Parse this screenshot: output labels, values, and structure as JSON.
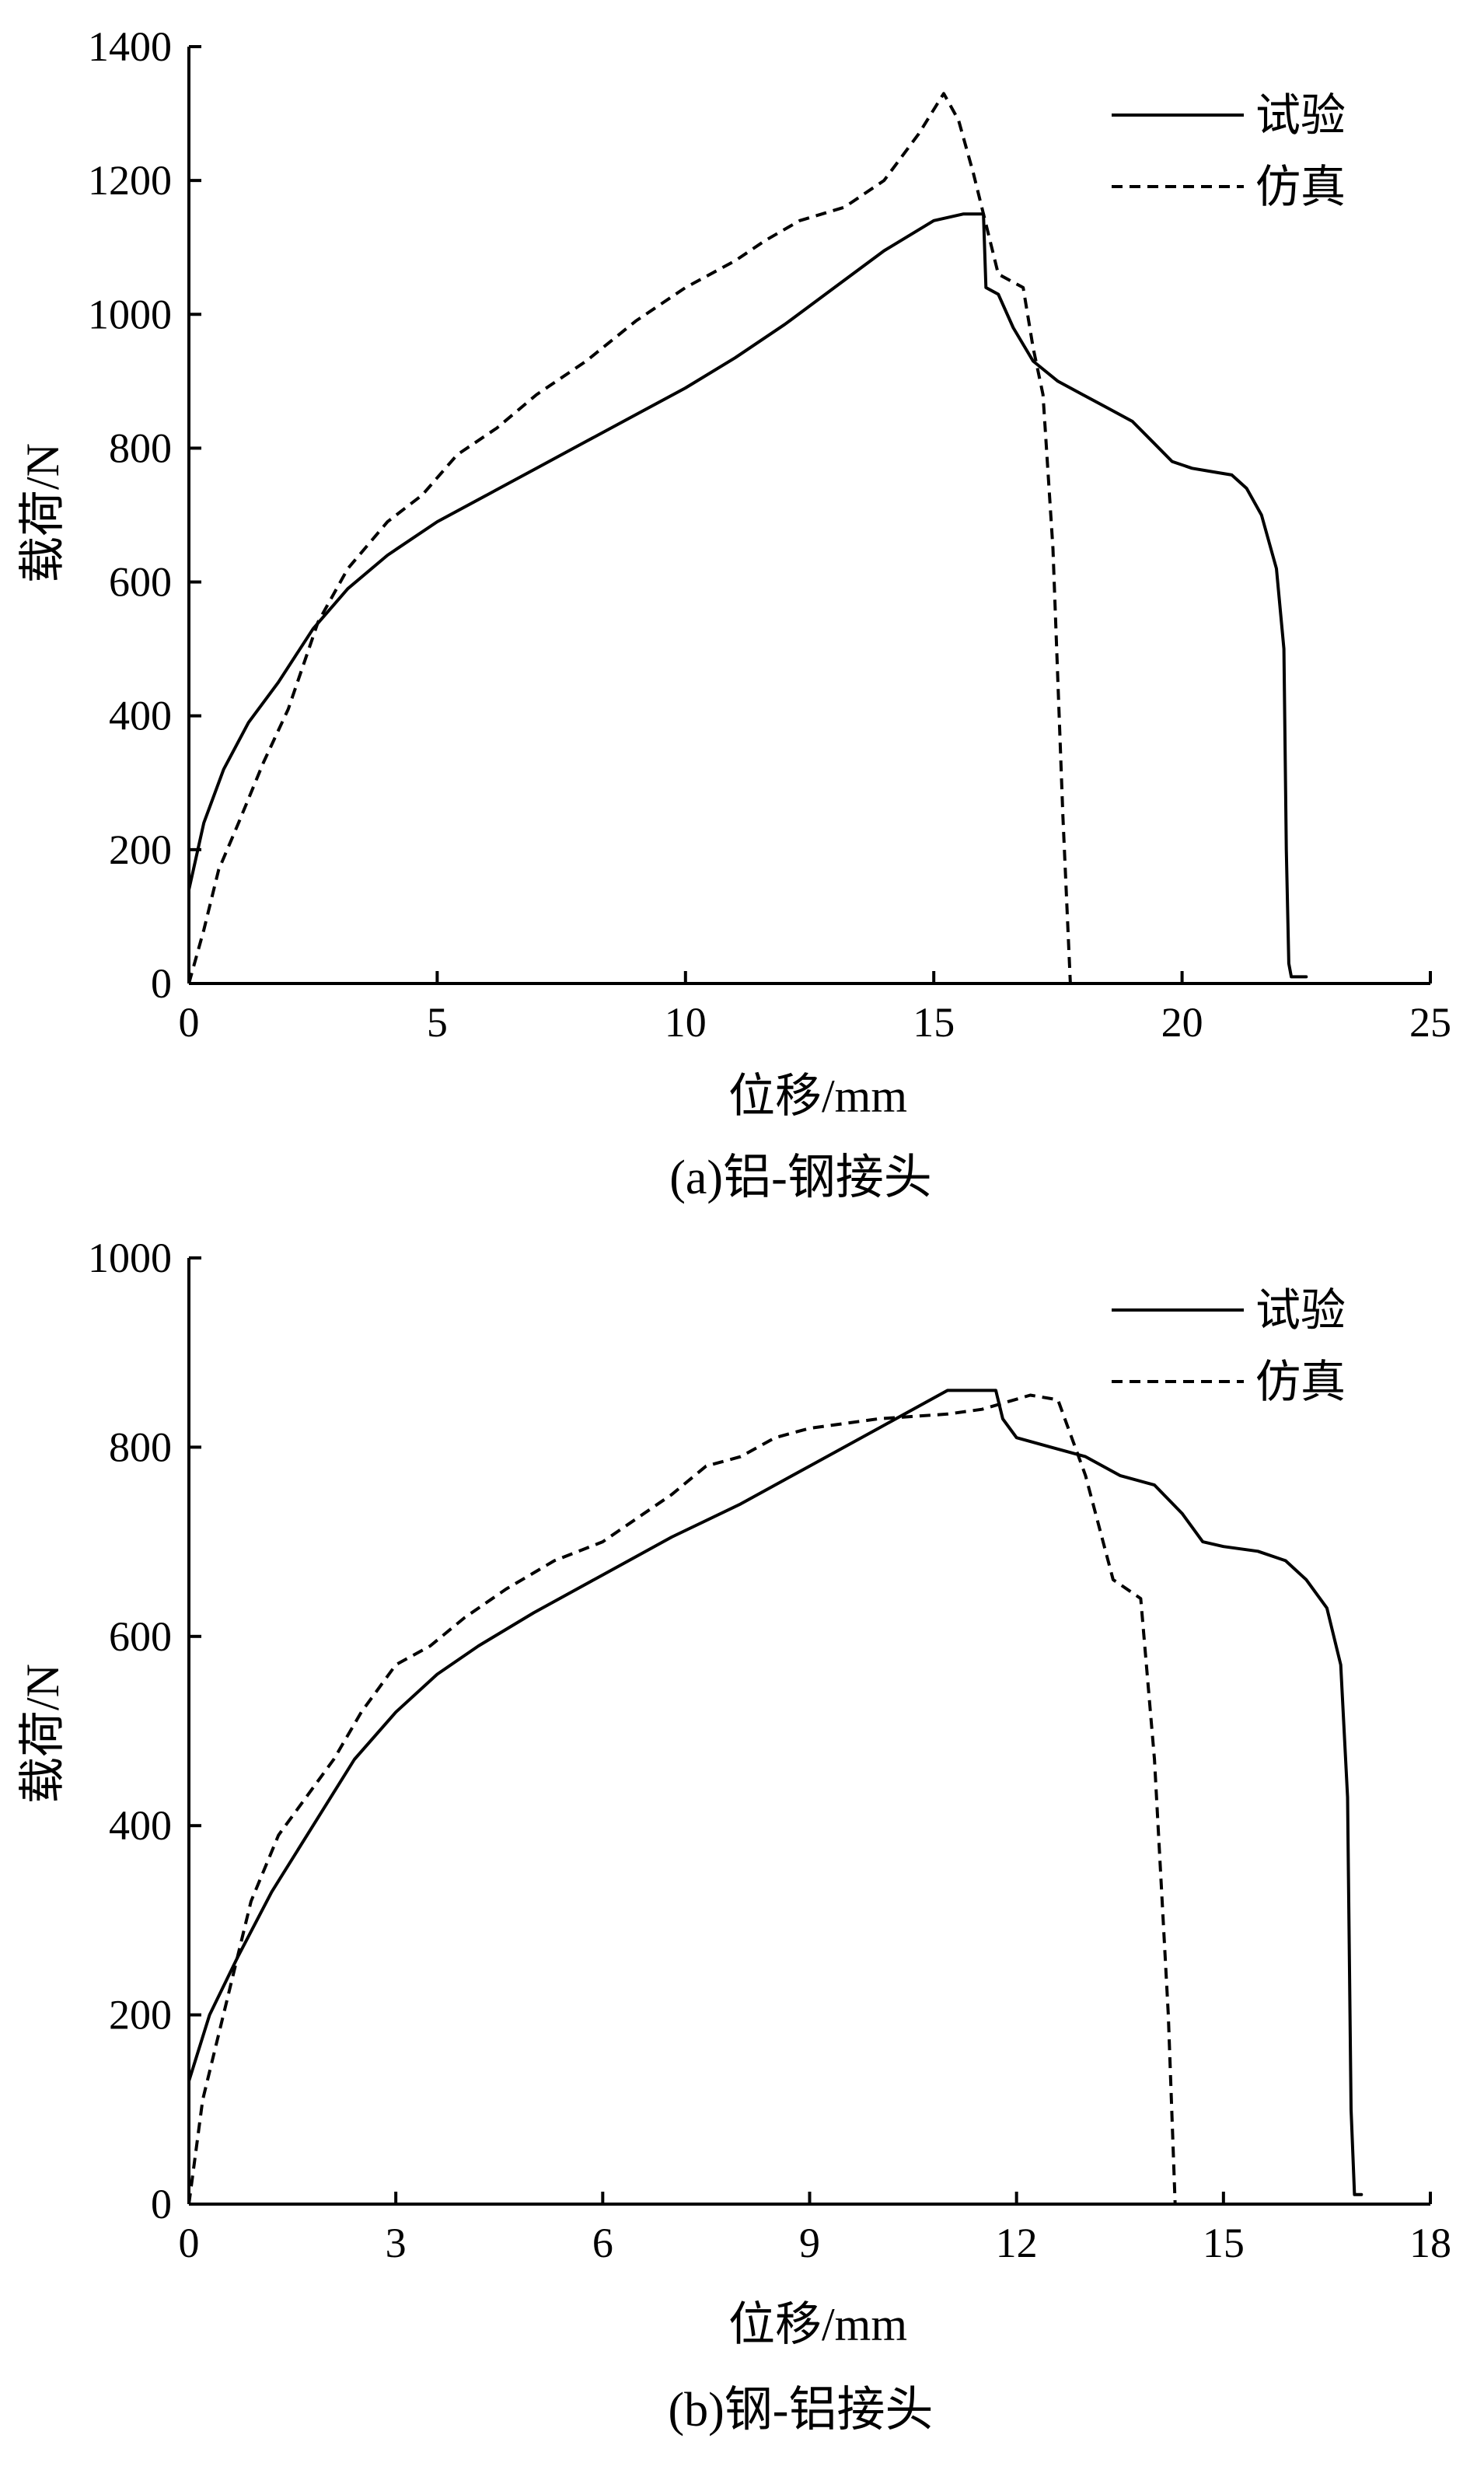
{
  "chart_data": [
    {
      "type": "line",
      "caption": "(a)铝-钢接头",
      "xlabel": "位移/mm",
      "ylabel": "载荷/N",
      "xlim": [
        0,
        25
      ],
      "ylim": [
        0,
        1400
      ],
      "xticks": [
        0,
        5,
        10,
        15,
        20,
        25
      ],
      "yticks": [
        0,
        200,
        400,
        600,
        800,
        1000,
        1200,
        1400
      ],
      "grid": false,
      "legend_position": "top-right",
      "series": [
        {
          "name": "试验",
          "style": "solid",
          "x": [
            0,
            0.3,
            0.7,
            1.2,
            1.8,
            2.5,
            3.2,
            4,
            5,
            6,
            7,
            8,
            9,
            10,
            11,
            12,
            13,
            14,
            15,
            15.6,
            15.9,
            16.0,
            16.05,
            16.3,
            16.6,
            17,
            17.5,
            18,
            18.5,
            19,
            19.4,
            19.8,
            20.2,
            20.6,
            21,
            21.3,
            21.6,
            21.9,
            22.05,
            22.1,
            22.15,
            22.2,
            22.5
          ],
          "y": [
            140,
            240,
            320,
            390,
            450,
            530,
            590,
            640,
            690,
            730,
            770,
            810,
            850,
            890,
            935,
            985,
            1040,
            1095,
            1140,
            1150,
            1150,
            1150,
            1040,
            1030,
            980,
            930,
            900,
            880,
            860,
            840,
            810,
            780,
            770,
            765,
            760,
            740,
            700,
            620,
            500,
            200,
            30,
            10,
            10
          ]
        },
        {
          "name": "仿真",
          "style": "dashed",
          "x": [
            0,
            0.3,
            0.6,
            1.0,
            1.5,
            2.0,
            2.6,
            3.2,
            4,
            4.7,
            5.4,
            6.2,
            7.0,
            8.0,
            9.0,
            10.0,
            11.0,
            11.6,
            12.3,
            13.2,
            14.0,
            14.7,
            15.2,
            15.5,
            15.8,
            16.0,
            16.3,
            16.8,
            17.0,
            17.2,
            17.4,
            17.6,
            17.75
          ],
          "y": [
            0,
            80,
            170,
            240,
            330,
            410,
            540,
            620,
            690,
            730,
            790,
            830,
            880,
            930,
            990,
            1040,
            1080,
            1110,
            1140,
            1160,
            1200,
            1270,
            1330,
            1290,
            1210,
            1150,
            1060,
            1040,
            950,
            880,
            650,
            250,
            0
          ]
        }
      ]
    },
    {
      "type": "line",
      "caption": "(b)钢-铝接头",
      "xlabel": "位移/mm",
      "ylabel": "载荷/N",
      "xlim": [
        0,
        18
      ],
      "ylim": [
        0,
        1000
      ],
      "xticks": [
        0,
        3,
        6,
        9,
        12,
        15,
        18
      ],
      "yticks": [
        0,
        200,
        400,
        600,
        800,
        1000
      ],
      "grid": false,
      "legend_position": "top-right",
      "series": [
        {
          "name": "试验",
          "style": "solid",
          "x": [
            0,
            0.3,
            0.7,
            1.2,
            1.8,
            2.4,
            3.0,
            3.6,
            4.2,
            5.0,
            6.0,
            7.0,
            8.0,
            9.0,
            10.0,
            11.0,
            11.7,
            11.8,
            12.0,
            12.5,
            13.0,
            13.5,
            14.0,
            14.4,
            14.7,
            15.0,
            15.5,
            15.9,
            16.2,
            16.5,
            16.7,
            16.8,
            16.85,
            16.9,
            17.0
          ],
          "y": [
            130,
            200,
            260,
            330,
            400,
            470,
            520,
            560,
            590,
            625,
            665,
            705,
            740,
            780,
            820,
            860,
            860,
            830,
            810,
            800,
            790,
            770,
            760,
            730,
            700,
            695,
            690,
            680,
            660,
            630,
            570,
            430,
            100,
            10,
            10
          ]
        },
        {
          "name": "仿真",
          "style": "dashed",
          "x": [
            0,
            0.2,
            0.5,
            0.9,
            1.3,
            1.7,
            2.1,
            2.5,
            3.0,
            3.5,
            4.0,
            4.6,
            5.3,
            6.0,
            7.0,
            7.5,
            8.0,
            8.5,
            9.0,
            10.0,
            11.0,
            11.5,
            12.2,
            12.6,
            13.0,
            13.4,
            13.8,
            14.0,
            14.2,
            14.3
          ],
          "y": [
            0,
            110,
            200,
            320,
            390,
            430,
            470,
            520,
            570,
            590,
            620,
            650,
            680,
            700,
            750,
            780,
            790,
            810,
            820,
            830,
            835,
            840,
            855,
            850,
            770,
            660,
            640,
            470,
            200,
            0
          ]
        }
      ]
    }
  ]
}
